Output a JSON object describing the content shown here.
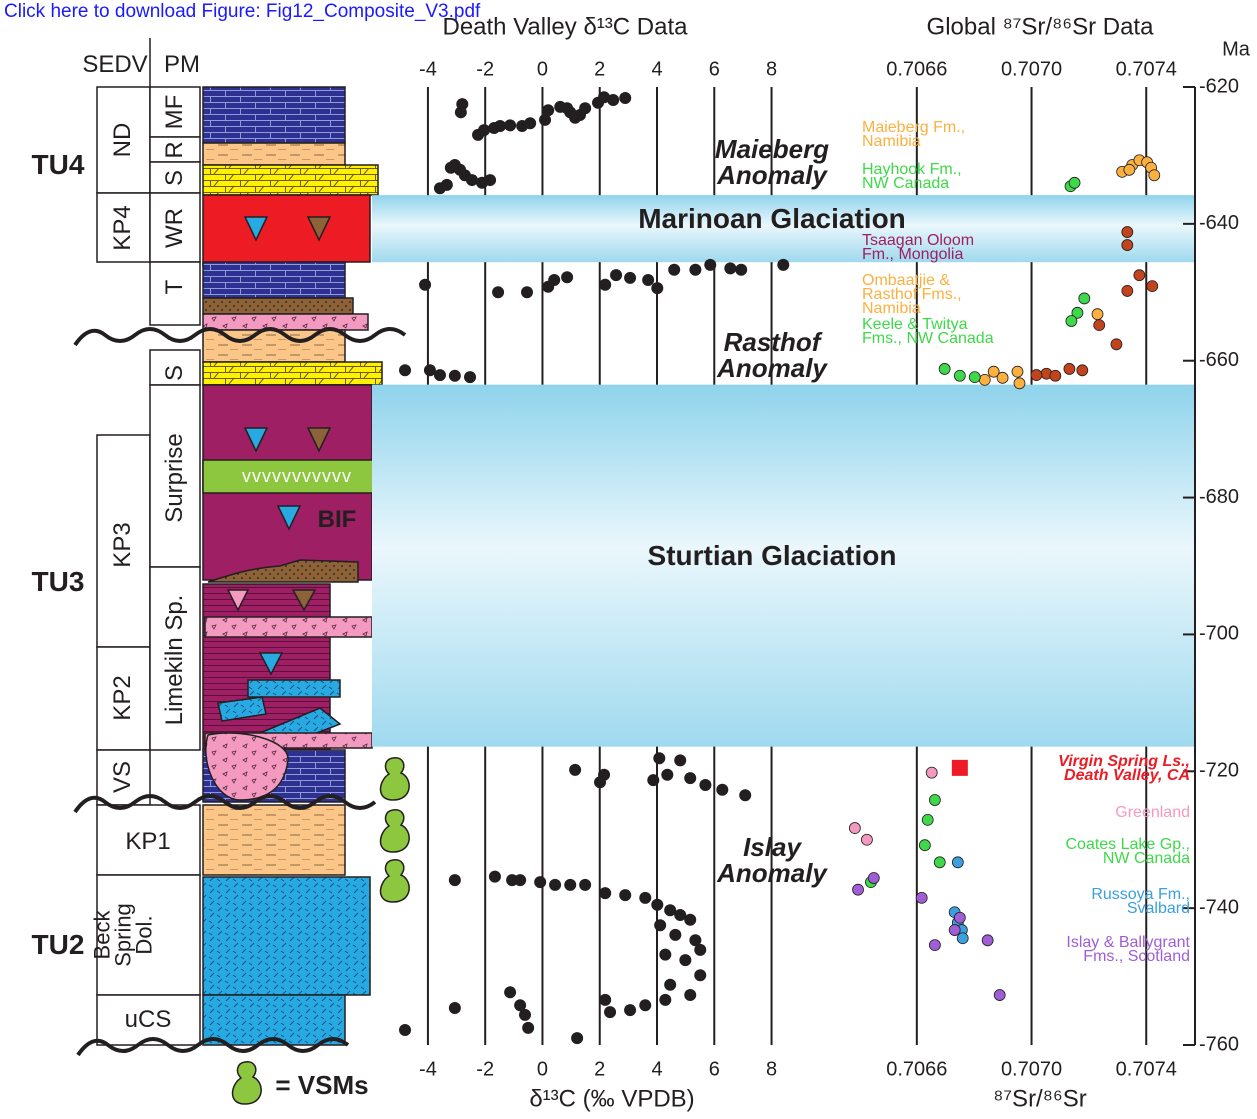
{
  "header": {
    "link": "Click here to download Figure: Fig12_Composite_V3.pdf"
  },
  "column": {
    "headers": [
      "SEDV",
      "PM"
    ],
    "tectonic_units": [
      "TU4",
      "TU3",
      "TU2"
    ],
    "units": [
      "ND",
      "MF",
      "R",
      "S",
      "KP4",
      "WR",
      "T",
      "S",
      "KP3",
      "Surprise",
      "KP2",
      "Limekiln Sp.",
      "VS",
      "KP1",
      "Beck\nSpring\nDol.",
      "uCS"
    ],
    "bif": "BIF",
    "volcanics": "vvvvvvvvvvv",
    "legend": "= VSMs"
  },
  "chart_data": [
    {
      "type": "scatter",
      "title": "Death Valley δ¹³C Data",
      "x_label": "δ¹³C (‰ VPDB)",
      "xlim": [
        -5.15,
        10.6
      ],
      "xticks": [
        -4,
        -2,
        0,
        2,
        4,
        6,
        8
      ],
      "ylim": [
        -760,
        -620
      ],
      "color": "#231f20",
      "grid": true,
      "x": [
        -2.8,
        -2.85,
        -2.25,
        -2.04,
        -1.69,
        -1.48,
        -1.13,
        -0.71,
        -0.43,
        0.09,
        0.2,
        0.62,
        0.97,
        1.31,
        1.49,
        1.94,
        2.15,
        2.47,
        2.89,
        1.14,
        0.86,
        -3.06,
        -3.2,
        -2.88,
        -2.71,
        -2.46,
        -2.11,
        -1.83,
        -3.58,
        -3.34,
        -4.1,
        -1.55,
        -0.54,
        0.2,
        0.41,
        0.86,
        2.19,
        2.57,
        3.06,
        3.69,
        4.01,
        4.6,
        5.34,
        5.86,
        6.56,
        6.94,
        8.41,
        -4.8,
        -3.93,
        -3.58,
        -3.06,
        -2.53,
        1.14,
        2.15,
        4.08,
        4.81,
        5.69,
        6.28,
        7.08,
        3.87,
        4.36,
        5.16,
        2.01,
        -3.06,
        -1.66,
        -1.06,
        -0.78,
        -0.08,
        0.44,
        0.97,
        1.49,
        2.19,
        2.89,
        3.59,
        4.01,
        4.46,
        4.81,
        5.16,
        4.11,
        4.64,
        5.34,
        5.51,
        4.29,
        4.99,
        5.51,
        4.46,
        5.16,
        2.19,
        2.36,
        3.06,
        3.59,
        4.29,
        -1.13,
        -0.78,
        -0.61,
        -0.5,
        -3.06,
        -4.8,
        1.21
      ],
      "values": [
        -622.5,
        -623.7,
        -627.0,
        -626.3,
        -626.0,
        -625.7,
        -625.6,
        -625.7,
        -625.3,
        -624.8,
        -623.4,
        -622.9,
        -623.7,
        -624.1,
        -623.1,
        -622.3,
        -621.5,
        -621.9,
        -621.6,
        -624.5,
        -623.1,
        -631.4,
        -631.8,
        -632.1,
        -632.9,
        -633.6,
        -634.0,
        -633.6,
        -634.8,
        -634.3,
        -648.9,
        -650.0,
        -650.0,
        -649.2,
        -648.2,
        -647.8,
        -648.9,
        -647.5,
        -647.9,
        -648.2,
        -649.4,
        -646.7,
        -646.7,
        -646.0,
        -646.5,
        -646.7,
        -646.0,
        -661.4,
        -661.4,
        -662.1,
        -662.2,
        -662.4,
        -719.8,
        -720.5,
        -718.1,
        -718.4,
        -722.0,
        -722.7,
        -723.5,
        -721.3,
        -720.5,
        -721.0,
        -721.6,
        -735.9,
        -735.4,
        -735.9,
        -735.9,
        -736.2,
        -736.6,
        -736.6,
        -736.6,
        -737.8,
        -738.1,
        -738.5,
        -739.5,
        -740.3,
        -741.0,
        -741.7,
        -742.5,
        -743.9,
        -744.7,
        -746.1,
        -746.8,
        -747.6,
        -749.8,
        -751.2,
        -752.7,
        -753.4,
        -755.2,
        -754.9,
        -754.2,
        -753.4,
        -752.3,
        -754.2,
        -755.6,
        -757.5,
        -754.6,
        -757.8,
        -759.0
      ],
      "bands": [
        {
          "label": "Marinoan Glaciation",
          "from": -635.8,
          "to": -645.6
        },
        {
          "label": "Sturtian Glaciation",
          "from": -663.5,
          "to": -716.4
        }
      ],
      "annotations": [
        "Maieberg\nAnomaly",
        "Rasthof\nAnomaly",
        "Islay\nAnomaly"
      ]
    },
    {
      "type": "scatter",
      "title": "Global ⁸⁷Sr/⁸⁶Sr Data",
      "x_label": "⁸⁷Sr/⁸⁶Sr",
      "y_label": "Ma",
      "xlim": [
        0.70636,
        0.70757
      ],
      "xticks": [
        0.7066,
        {
          "value": 0.707,
          "label": "0.7070"
        },
        0.7074
      ],
      "grid": true,
      "ylim": [
        -760,
        -620
      ],
      "yticks": [
        -620,
        -640,
        -660,
        -680,
        -700,
        -720,
        -740,
        -760
      ],
      "series": [
        {
          "name": "Maieberg Fm.,\nNamibia",
          "color": "#fbb040",
          "x": [
            0.707316,
            0.707351,
            0.707376,
            0.707403,
            0.707417,
            0.707428,
            0.707341
          ],
          "values": [
            -632.4,
            -631.4,
            -630.7,
            -631.0,
            -631.8,
            -632.9,
            -632.1
          ]
        },
        {
          "name": "Hayhook Fm.,\nNW Canada",
          "color": "#3ed94a",
          "x": [
            0.707136,
            0.70715
          ],
          "values": [
            -634.5,
            -634.0
          ]
        },
        {
          "name": "Tsaagan Oloom\nFm., Mongolia",
          "color": "#c1441c",
          "label_color": "#9e1f63",
          "x": [
            0.707334,
            0.707334,
            0.707376,
            0.707334,
            0.707421,
            0.707236,
            0.707296,
            0.707132,
            0.707177,
            0.707052,
            0.707017,
            0.707083
          ],
          "values": [
            -641.2,
            -643.1,
            -647.5,
            -649.8,
            -649.1,
            -654.8,
            -657.6,
            -661.2,
            -661.4,
            -661.9,
            -662.1,
            -662.2
          ]
        },
        {
          "name": "Ombaatjie &\nRasthof Fms.,\nNamibia",
          "color": "#fbb040",
          "x": [
            0.70723,
            0.706951,
            0.706868,
            0.706958,
            0.706899,
            0.706837
          ],
          "values": [
            -653.2,
            -661.6,
            -661.6,
            -663.3,
            -662.5,
            -662.8
          ]
        },
        {
          "name": "Keele & Twitya\nFms., NW Canada",
          "color": "#3ed94a",
          "x": [
            0.707184,
            0.70716,
            0.707139,
            0.706697,
            0.70675,
            0.706802
          ],
          "values": [
            -650.9,
            -653.0,
            -654.2,
            -661.2,
            -662.2,
            -662.4
          ]
        },
        {
          "name": "Virgin Spring Ls.,\nDeath Valley, CA",
          "color": "#ed1c24",
          "marker": "square",
          "x": [
            0.70675
          ],
          "values": [
            -719.5
          ]
        },
        {
          "name": "Greenland",
          "color": "#f49ac1",
          "x": [
            0.706652,
            0.706384,
            0.706426
          ],
          "values": [
            -720.2,
            -728.3,
            -730.0
          ]
        },
        {
          "name": "Coates Lake Gp.,\nNW Canada",
          "color": "#3ed94a",
          "x": [
            0.706663,
            0.706638,
            0.706628,
            0.70668,
            0.70644
          ],
          "values": [
            -724.2,
            -727.1,
            -730.8,
            -733.3,
            -736.2
          ]
        },
        {
          "name": "Russoya Fm.,\nSvalbard",
          "color": "#3aa0e0",
          "x": [
            0.706743,
            0.706732,
            0.706743,
            0.706757,
            0.70676
          ],
          "values": [
            -733.3,
            -740.6,
            -742.1,
            -743.2,
            -744.4
          ]
        },
        {
          "name": "Islay & Ballygrant\nFms., Scotland",
          "color": "#a05ed6",
          "x": [
            0.706395,
            0.70645,
            0.706617,
            0.70675,
            0.706663,
            0.706847,
            0.706889,
            0.706732
          ],
          "values": [
            -737.3,
            -735.6,
            -738.5,
            -741.4,
            -745.4,
            -744.7,
            -752.7,
            -743.2
          ]
        }
      ]
    }
  ]
}
